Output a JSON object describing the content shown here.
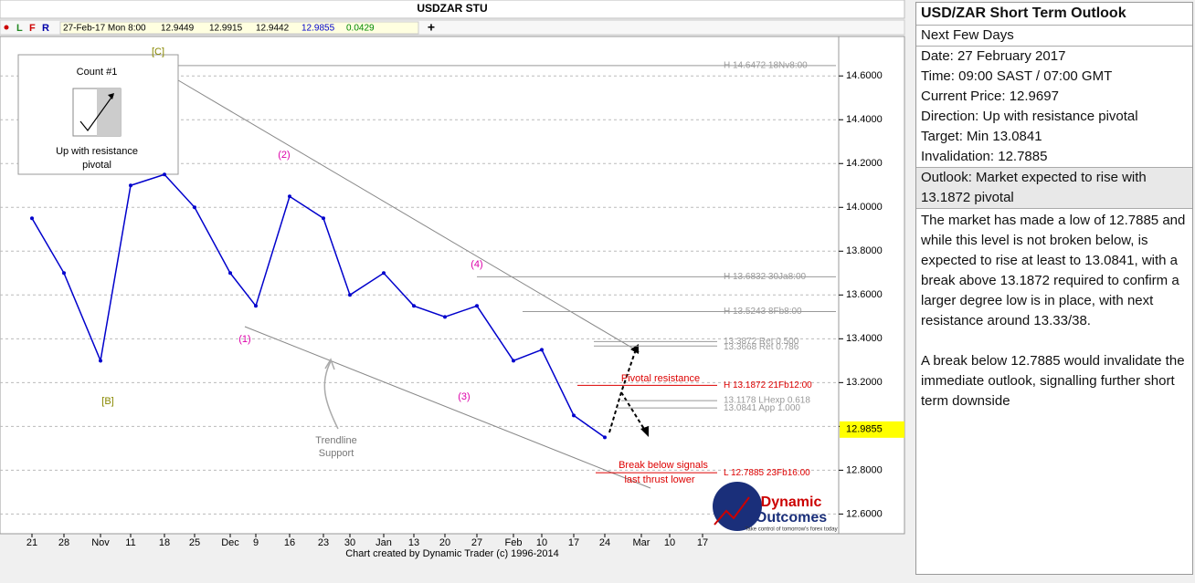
{
  "chart_data": {
    "type": "line",
    "title": "USDZAR STU",
    "toolbar": {
      "flags": [
        "L",
        "F",
        "R"
      ],
      "date": "27-Feb-17 Mon 8:00",
      "open": 12.9449,
      "high": 12.9915,
      "low": 12.9442,
      "close": 12.9855,
      "change": 0.0429
    },
    "categories": [
      "21",
      "28",
      "Nov",
      "11",
      "18",
      "25",
      "Dec",
      "9",
      "16",
      "23",
      "30",
      "Jan",
      "13",
      "20",
      "27",
      "Feb",
      "10",
      "17",
      "24",
      "Mar",
      "10",
      "17"
    ],
    "values": [
      13.95,
      13.7,
      13.3,
      14.1,
      14.15,
      14.0,
      13.7,
      13.55,
      14.05,
      13.95,
      13.6,
      13.7,
      13.55,
      13.5,
      13.55,
      13.3,
      13.35,
      13.05,
      12.95,
      null,
      null,
      null
    ],
    "color": "#0000cc",
    "ylim": [
      12.51,
      14.78
    ],
    "yticks": [
      {
        "value": 14.6,
        "label": "14.6000"
      },
      {
        "value": 14.4,
        "label": "14.4000"
      },
      {
        "value": 14.2,
        "label": "14.2000"
      },
      {
        "value": 14.0,
        "label": "14.0000"
      },
      {
        "value": 13.8,
        "label": "13.8000"
      },
      {
        "value": 13.6,
        "label": "13.6000"
      },
      {
        "value": 13.4,
        "label": "13.4000"
      },
      {
        "value": 13.2,
        "label": "13.2000"
      },
      {
        "value": 13.0,
        "label": "13.0000"
      },
      {
        "value": 12.8,
        "label": "12.8000"
      },
      {
        "value": 12.6,
        "label": "12.6000"
      }
    ],
    "grid": true,
    "current_price": 12.9855,
    "levels": [
      {
        "label": "H 14.6472 18Nv8:00",
        "value": 14.6472,
        "color": "#999999"
      },
      {
        "label": "H 13.6832 30Ja8:00",
        "value": 13.6832,
        "color": "#999999"
      },
      {
        "label": "H 13.5243 8Fb8:00",
        "value": 13.5243,
        "color": "#999999"
      },
      {
        "label": "13.3872 Ret 0.500",
        "value": 13.3872,
        "color": "#999999"
      },
      {
        "label": "13.3668 Ret 0.786",
        "value": 13.3668,
        "color": "#999999"
      },
      {
        "label": "H 13.1872 21Fb12:00",
        "value": 13.1872,
        "color": "#dd0000"
      },
      {
        "label": "13.1178 LHexp 0.618",
        "value": 13.1178,
        "color": "#999999"
      },
      {
        "label": "13.0841 App 1.000",
        "value": 13.0841,
        "color": "#999999"
      },
      {
        "label": "L 12.7885 23Fb16:00",
        "value": 12.7885,
        "color": "#dd0000"
      }
    ],
    "wave_labels": [
      "[C]",
      "(2)",
      "(4)",
      "(1)",
      "(3)",
      "[B]"
    ],
    "annotations": {
      "pivotal": "Pivotal resistance",
      "break_1": "Break below signals",
      "break_2": "last thrust lower",
      "trend_1": "Trendline",
      "trend_2": "Support"
    },
    "count_box": {
      "title": "Count #1",
      "line_1": "Up with resistance",
      "line_2": "pivotal"
    },
    "logo": {
      "word_1": "Dynamic",
      "word_2": "Outcomes",
      "tagline": "Take control of tomorrow's forex today"
    },
    "footer": "Chart created by Dynamic Trader  (c)  1996-2014"
  },
  "outlook_panel": {
    "title": "USD/ZAR Short Term Outlook",
    "subtitle": "Next Few Days",
    "lines": [
      "Date: 27 February 2017",
      "Time: 09:00 SAST / 07:00 GMT",
      "Current Price: 12.9697",
      "Direction:  Up with resistance pivotal",
      "Target:  Min 13.0841",
      "Invalidation: 12.7885"
    ],
    "outlook": "Outlook:  Market expected to rise with 13.1872 pivotal",
    "body": [
      "The market has made a low of 12.7885 and while this level is not broken below, is expected to rise at least to 13.0841, with a break above 13.1872 required to confirm a larger degree low is in place, with next resistance around 13.33/38.",
      "A break below 12.7885 would invalidate the immediate outlook, signalling further short term downside"
    ]
  }
}
